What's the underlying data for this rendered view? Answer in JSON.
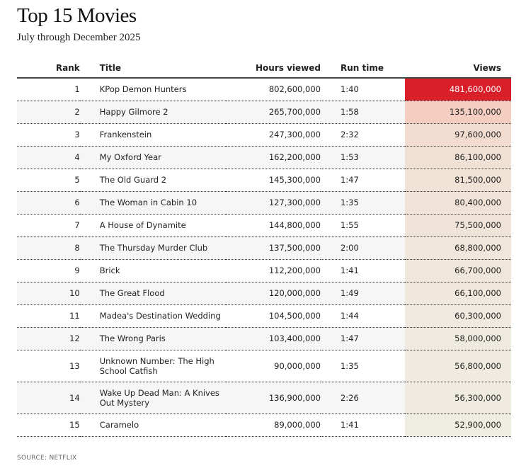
{
  "title": "Top 15 Movies",
  "subtitle": "July through December 2025",
  "source": "SOURCE: NETFLIX",
  "colors": {
    "low": "#efece2",
    "mid": "#f4cdbf",
    "high": "#d81f2a"
  },
  "chart_data": {
    "type": "table",
    "columns": [
      "Rank",
      "Title",
      "Hours viewed",
      "Run time",
      "Views"
    ],
    "rows": [
      [
        "1",
        "KPop Demon Hunters",
        "802,600,000",
        "1:40",
        "481,600,000"
      ],
      [
        "2",
        "Happy Gilmore 2",
        "265,700,000",
        "1:58",
        "135,100,000"
      ],
      [
        "3",
        "Frankenstein",
        "247,300,000",
        "2:32",
        "97,600,000"
      ],
      [
        "4",
        "My Oxford Year",
        "162,200,000",
        "1:53",
        "86,100,000"
      ],
      [
        "5",
        "The Old Guard 2",
        "145,300,000",
        "1:47",
        "81,500,000"
      ],
      [
        "6",
        "The Woman in Cabin 10",
        "127,300,000",
        "1:35",
        "80,400,000"
      ],
      [
        "7",
        "A House of Dynamite",
        "144,800,000",
        "1:55",
        "75,500,000"
      ],
      [
        "8",
        "The Thursday Murder Club",
        "137,500,000",
        "2:00",
        "68,800,000"
      ],
      [
        "9",
        "Brick",
        "112,200,000",
        "1:41",
        "66,700,000"
      ],
      [
        "10",
        "The Great Flood",
        "120,000,000",
        "1:49",
        "66,100,000"
      ],
      [
        "11",
        "Madea's Destination Wedding",
        "104,500,000",
        "1:44",
        "60,300,000"
      ],
      [
        "12",
        "The Wrong Paris",
        "103,400,000",
        "1:47",
        "58,000,000"
      ],
      [
        "13",
        "Unknown Number: The High School Catfish",
        "90,000,000",
        "1:35",
        "56,800,000"
      ],
      [
        "14",
        "Wake Up Dead Man: A Knives Out Mystery",
        "136,900,000",
        "2:26",
        "56,300,000"
      ],
      [
        "15",
        "Caramelo",
        "89,000,000",
        "1:41",
        "52,900,000"
      ]
    ]
  }
}
